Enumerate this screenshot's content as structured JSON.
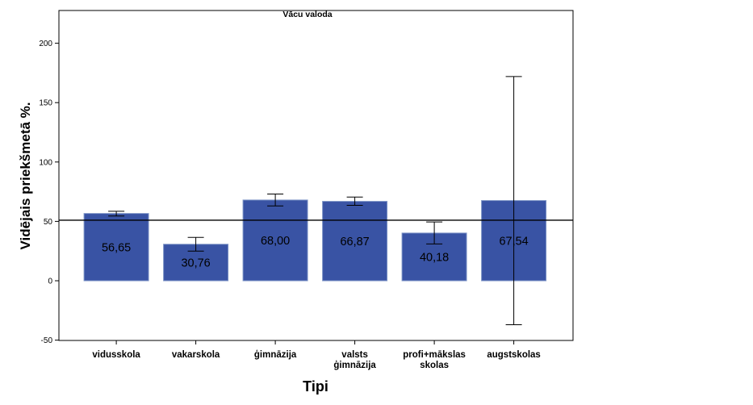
{
  "chart_data": {
    "type": "bar",
    "title": "Vācu valoda",
    "xlabel": "Tipi",
    "ylabel": "Vidējais priekšmetā %.",
    "categories": [
      [
        "vidusskola"
      ],
      [
        "vakarskola"
      ],
      [
        "ģimnāzija"
      ],
      [
        "valsts",
        "ģimnāzija"
      ],
      [
        "profi+mākslas",
        "skolas"
      ],
      [
        "augstskolas"
      ]
    ],
    "values": [
      56.65,
      30.76,
      68.0,
      66.87,
      40.18,
      67.54
    ],
    "value_labels": [
      "56,65",
      "30,76",
      "68,00",
      "66,87",
      "40,18",
      "67,54"
    ],
    "error_low": [
      54.5,
      25.0,
      63.0,
      63.5,
      31.0,
      -37.0
    ],
    "error_high": [
      58.5,
      36.5,
      73.0,
      70.5,
      49.5,
      172.0
    ],
    "reference_line": 51,
    "ylim": [
      -50,
      225
    ],
    "yticks": [
      -50,
      0,
      50,
      100,
      150,
      200
    ],
    "bar_color": "#3953a4",
    "bar_border": "#7e95c7",
    "grid": false,
    "legend": false
  }
}
